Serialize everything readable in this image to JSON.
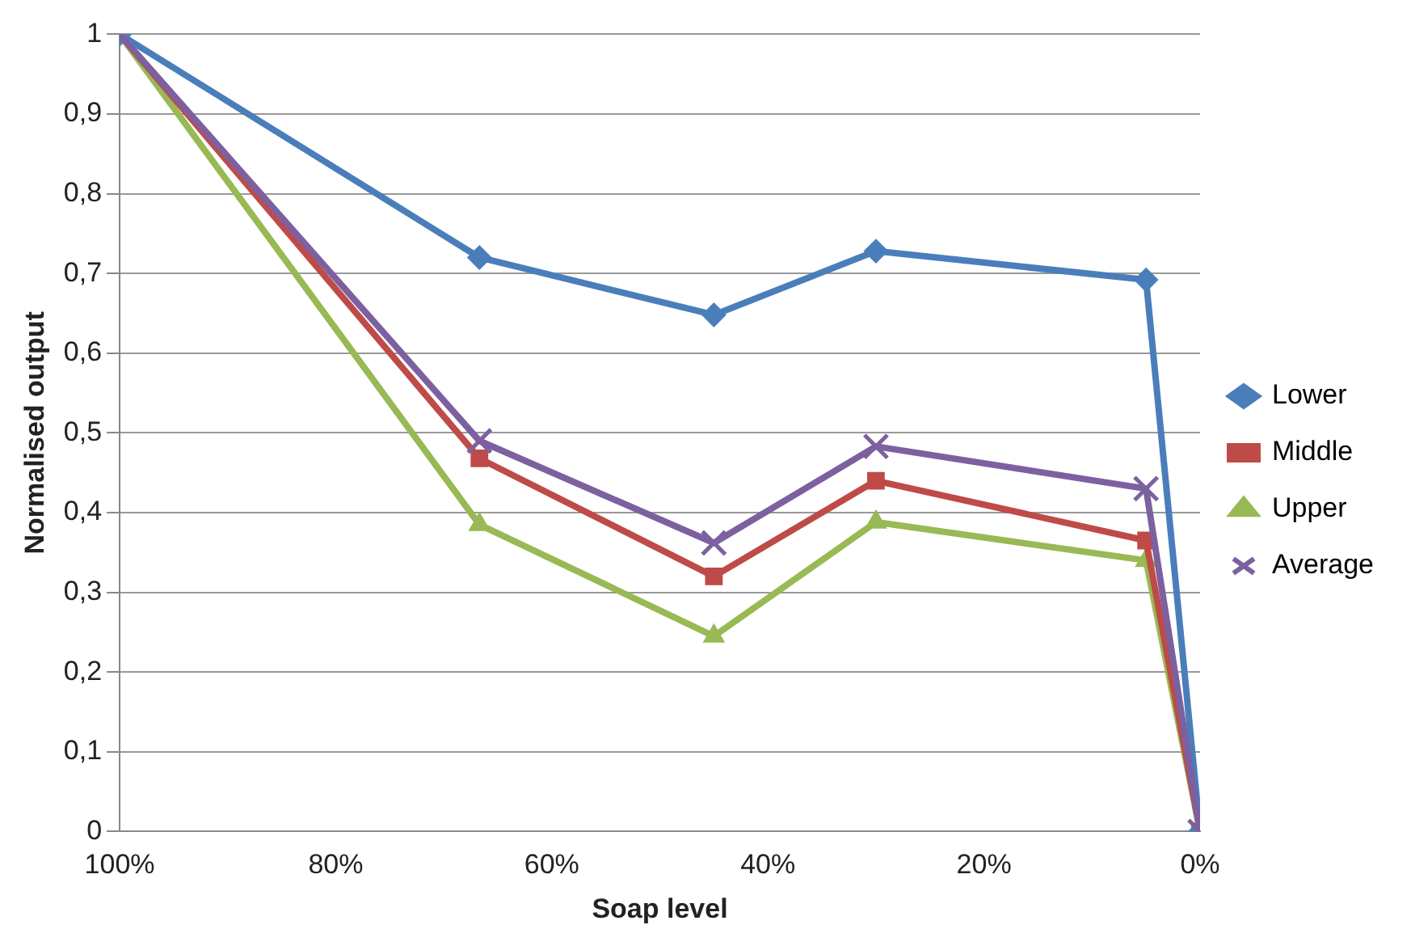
{
  "chart_data": {
    "type": "line",
    "xlabel": "Soap level",
    "ylabel": "Normalised output",
    "x": [
      100,
      66.7,
      45,
      30,
      5,
      0
    ],
    "series": [
      {
        "name": "Lower",
        "color": "#4a7ebb",
        "marker": "diamond",
        "values": [
          1,
          0.72,
          0.648,
          0.728,
          0.692,
          0
        ]
      },
      {
        "name": "Middle",
        "color": "#be4b48",
        "marker": "square",
        "values": [
          1,
          0.468,
          0.32,
          0.44,
          0.365,
          0
        ]
      },
      {
        "name": "Upper",
        "color": "#98b954",
        "marker": "triangle",
        "values": [
          1,
          0.385,
          0.245,
          0.388,
          0.34,
          0
        ]
      },
      {
        "name": "Average",
        "color": "#7d60a0",
        "marker": "cross",
        "values": [
          1,
          0.49,
          0.362,
          0.483,
          0.43,
          0
        ]
      }
    ],
    "xlim": [
      100,
      0
    ],
    "xticks": [
      {
        "value": 100,
        "label": "100%"
      },
      {
        "value": 80,
        "label": "80%"
      },
      {
        "value": 60,
        "label": "60%"
      },
      {
        "value": 40,
        "label": "40%"
      },
      {
        "value": 20,
        "label": "20%"
      },
      {
        "value": 0,
        "label": "0%"
      }
    ],
    "ylim": [
      0,
      1
    ],
    "yticks": [
      0,
      {
        "value": 0.1,
        "label": "0,1"
      },
      {
        "value": 0.2,
        "label": "0,2"
      },
      {
        "value": 0.3,
        "label": "0,3"
      },
      {
        "value": 0.4,
        "label": "0,4"
      },
      {
        "value": 0.5,
        "label": "0,5"
      },
      {
        "value": 0.6,
        "label": "0,6"
      },
      {
        "value": 0.7,
        "label": "0,7"
      },
      {
        "value": 0.8,
        "label": "0,8"
      },
      {
        "value": 0.9,
        "label": "0,9"
      },
      1
    ],
    "grid": "y",
    "legend": "right",
    "line_style": "solid"
  }
}
